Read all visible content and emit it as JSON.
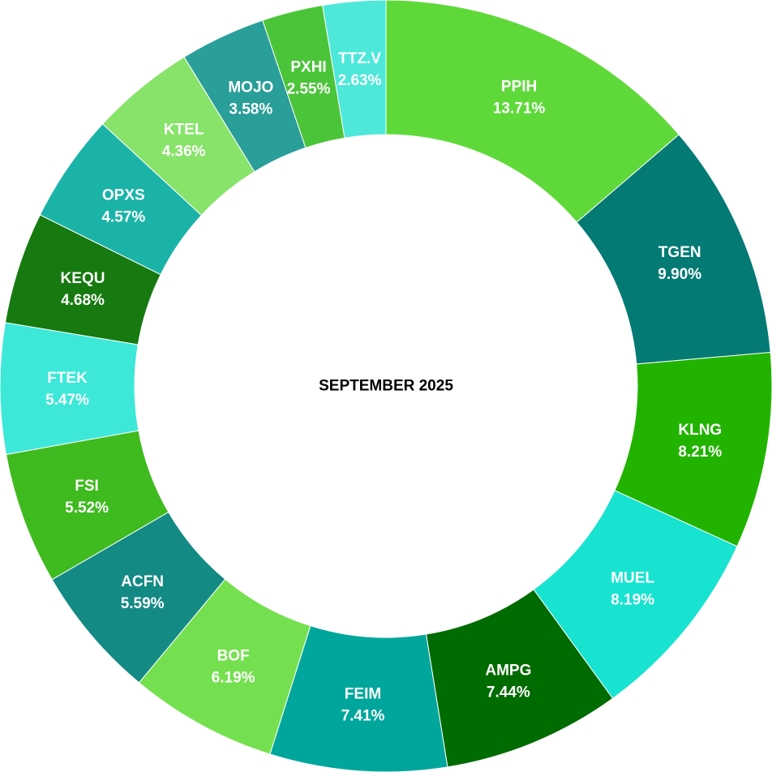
{
  "chart_data": {
    "type": "donut",
    "title": "SEPTEMBER 2025",
    "slices": [
      {
        "label": "PPIH",
        "value": 13.71,
        "display": "13.71%",
        "color": "#5fd93a"
      },
      {
        "label": "TGEN",
        "value": 9.9,
        "display": "9.90%",
        "color": "#037a74"
      },
      {
        "label": "KLNG",
        "value": 8.21,
        "display": "8.21%",
        "color": "#22b300"
      },
      {
        "label": "MUEL",
        "value": 8.19,
        "display": "8.19%",
        "color": "#17e3d0"
      },
      {
        "label": "AMPG",
        "value": 7.44,
        "display": "7.44%",
        "color": "#006b00"
      },
      {
        "label": "FEIM",
        "value": 7.41,
        "display": "7.41%",
        "color": "#00a69c"
      },
      {
        "label": "BOF",
        "value": 6.19,
        "display": "6.19%",
        "color": "#75e04f"
      },
      {
        "label": "ACFN",
        "value": 5.59,
        "display": "5.59%",
        "color": "#148a85"
      },
      {
        "label": "FSI",
        "value": 5.52,
        "display": "5.52%",
        "color": "#3fba1f"
      },
      {
        "label": "FTEK",
        "value": 5.47,
        "display": "5.47%",
        "color": "#3de8d9"
      },
      {
        "label": "KEQU",
        "value": 4.68,
        "display": "4.68%",
        "color": "#167a10"
      },
      {
        "label": "OPXS",
        "value": 4.57,
        "display": "4.57%",
        "color": "#1bb3a8"
      },
      {
        "label": "KTEL",
        "value": 4.36,
        "display": "4.36%",
        "color": "#88e36b"
      },
      {
        "label": "MOJO",
        "value": 3.58,
        "display": "3.58%",
        "color": "#2a9e98"
      },
      {
        "label": "PXHI",
        "value": 2.55,
        "display": "2.55%",
        "color": "#4cc43a"
      },
      {
        "label": "TTZ.V",
        "value": 2.63,
        "display": "2.63%",
        "color": "#4ee8da"
      }
    ]
  }
}
